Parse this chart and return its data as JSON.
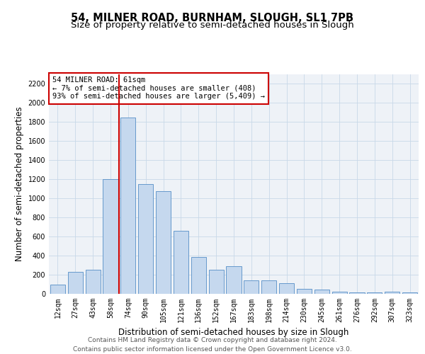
{
  "title1": "54, MILNER ROAD, BURNHAM, SLOUGH, SL1 7PB",
  "title2": "Size of property relative to semi-detached houses in Slough",
  "xlabel": "Distribution of semi-detached houses by size in Slough",
  "ylabel": "Number of semi-detached properties",
  "footer1": "Contains HM Land Registry data © Crown copyright and database right 2024.",
  "footer2": "Contains public sector information licensed under the Open Government Licence v3.0.",
  "annotation_title": "54 MILNER ROAD: 61sqm",
  "annotation_line1": "← 7% of semi-detached houses are smaller (408)",
  "annotation_line2": "93% of semi-detached houses are larger (5,409) →",
  "bar_color": "#c5d8ee",
  "bar_edge_color": "#6699cc",
  "vline_color": "#cc0000",
  "annotation_box_edgecolor": "#cc0000",
  "grid_color": "#c8d8e8",
  "bg_color": "#eef2f7",
  "categories": [
    "12sqm",
    "27sqm",
    "43sqm",
    "58sqm",
    "74sqm",
    "90sqm",
    "105sqm",
    "121sqm",
    "136sqm",
    "152sqm",
    "167sqm",
    "183sqm",
    "198sqm",
    "214sqm",
    "230sqm",
    "245sqm",
    "261sqm",
    "276sqm",
    "292sqm",
    "307sqm",
    "323sqm"
  ],
  "values": [
    100,
    230,
    250,
    1200,
    1850,
    1150,
    1075,
    660,
    385,
    250,
    290,
    140,
    140,
    115,
    50,
    45,
    25,
    18,
    18,
    25,
    18
  ],
  "ylim": [
    0,
    2300
  ],
  "yticks": [
    0,
    200,
    400,
    600,
    800,
    1000,
    1200,
    1400,
    1600,
    1800,
    2000,
    2200
  ],
  "vline_x": 3.5,
  "title_fontsize": 10.5,
  "subtitle_fontsize": 9.5,
  "label_fontsize": 8.5,
  "tick_fontsize": 7,
  "footer_fontsize": 6.5,
  "annotation_fontsize": 7.5
}
